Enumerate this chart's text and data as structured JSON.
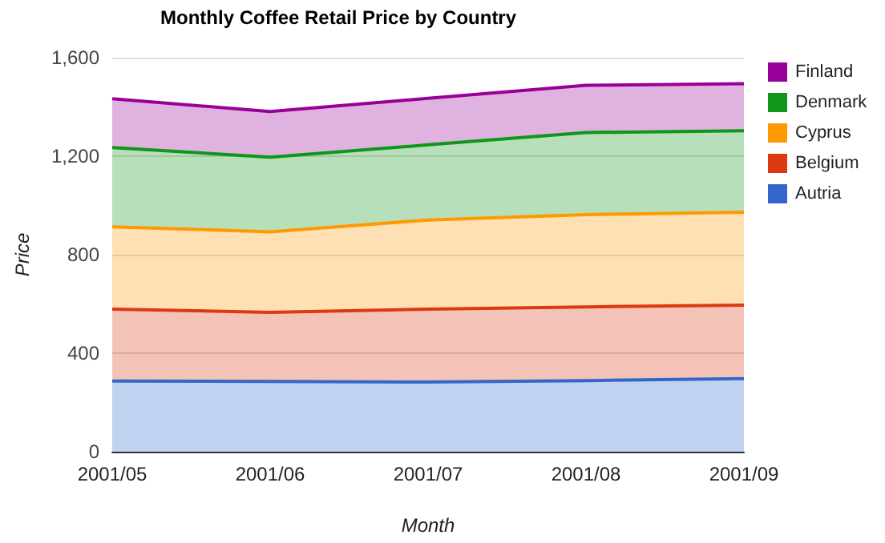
{
  "chart_data": {
    "type": "area",
    "stacked": true,
    "title": "Monthly Coffee Retail Price by Country",
    "xlabel": "Month",
    "ylabel": "Price",
    "categories": [
      "2001/05",
      "2001/06",
      "2001/07",
      "2001/08",
      "2001/09"
    ],
    "series": [
      {
        "name": "Autria",
        "color": "#3366cc",
        "values": [
          287,
          285,
          283,
          289,
          297
        ]
      },
      {
        "name": "Belgium",
        "color": "#dc3912",
        "values": [
          292,
          281,
          296,
          299,
          298
        ]
      },
      {
        "name": "Cyprus",
        "color": "#ff9900",
        "values": [
          334,
          327,
          362,
          375,
          377
        ]
      },
      {
        "name": "Denmark",
        "color": "#109618",
        "values": [
          322,
          303,
          305,
          333,
          331
        ]
      },
      {
        "name": "Finland",
        "color": "#990099",
        "values": [
          198,
          185,
          189,
          192,
          191
        ]
      }
    ],
    "ylim": [
      0,
      1600
    ],
    "yticks": [
      0,
      400,
      800,
      {
        "value": 1200,
        "label": "1,200"
      },
      {
        "value": 1600,
        "label": "1,600"
      }
    ],
    "grid": "y",
    "legend": "right",
    "marker": "none"
  }
}
